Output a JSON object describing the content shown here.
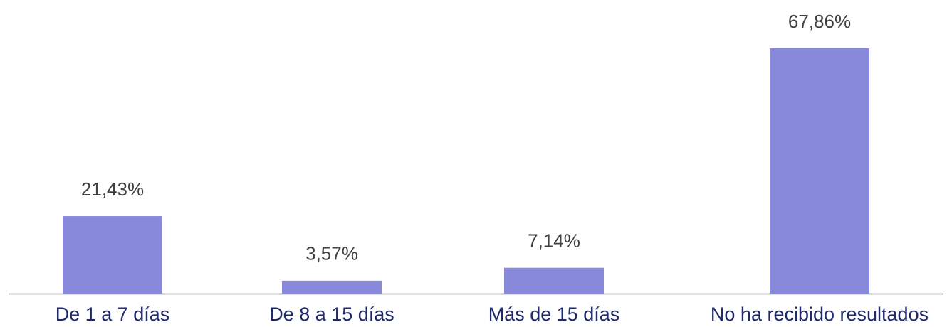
{
  "chart_data": {
    "type": "bar",
    "categories": [
      "De 1 a 7 días",
      "De 8 a 15 días",
      "Más de 15 días",
      "No ha recibido resultados"
    ],
    "values": [
      21.43,
      3.57,
      7.14,
      67.86
    ],
    "value_labels": [
      "21,43%",
      "3,57%",
      "7,14%",
      "67,86%"
    ],
    "color": "#8989db"
  }
}
